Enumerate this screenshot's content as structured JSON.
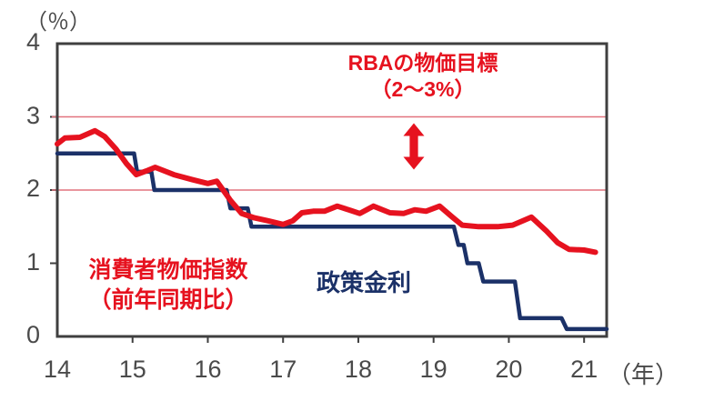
{
  "chart_data": {
    "type": "line",
    "title": "",
    "y_axis_unit_label": "（％）",
    "x_axis_unit_label": "（年）",
    "x_range": [
      14,
      21.3
    ],
    "y_range": [
      0,
      4
    ],
    "x_ticks": [
      14,
      15,
      16,
      17,
      18,
      19,
      20,
      21
    ],
    "x_tick_labels": [
      "14",
      "15",
      "16",
      "17",
      "18",
      "19",
      "20",
      "21"
    ],
    "y_ticks": [
      4,
      3,
      2,
      1,
      0
    ],
    "y_tick_labels": [
      "4",
      "3",
      "2",
      "1",
      "0"
    ],
    "grid": "off",
    "legend_position": "none",
    "axis_color": "#3f3f3f",
    "tick_label_color": "#4a4a4a",
    "target_band": {
      "low": 2,
      "high": 3,
      "line_color": "#e2737f"
    },
    "series": [
      {
        "name": "政策金利",
        "color": "#1b3168",
        "width": 4.5,
        "style": "step",
        "points": [
          [
            14.0,
            2.5
          ],
          [
            15.02,
            2.5
          ],
          [
            15.06,
            2.25
          ],
          [
            15.25,
            2.25
          ],
          [
            15.29,
            2.0
          ],
          [
            16.25,
            2.0
          ],
          [
            16.3,
            1.75
          ],
          [
            16.53,
            1.75
          ],
          [
            16.58,
            1.5
          ],
          [
            19.27,
            1.5
          ],
          [
            19.33,
            1.25
          ],
          [
            19.4,
            1.25
          ],
          [
            19.45,
            1.0
          ],
          [
            19.6,
            1.0
          ],
          [
            19.66,
            0.75
          ],
          [
            20.08,
            0.75
          ],
          [
            20.15,
            0.25
          ],
          [
            20.7,
            0.25
          ],
          [
            20.77,
            0.1
          ],
          [
            21.3,
            0.1
          ]
        ]
      },
      {
        "name": "消費者物価指数（前年同期比）",
        "color": "#e6121f",
        "width": 6,
        "style": "line",
        "points": [
          [
            14.0,
            2.63
          ],
          [
            14.1,
            2.71
          ],
          [
            14.3,
            2.72
          ],
          [
            14.5,
            2.81
          ],
          [
            14.63,
            2.73
          ],
          [
            14.78,
            2.56
          ],
          [
            14.92,
            2.36
          ],
          [
            15.05,
            2.21
          ],
          [
            15.18,
            2.26
          ],
          [
            15.3,
            2.31
          ],
          [
            15.55,
            2.21
          ],
          [
            15.8,
            2.14
          ],
          [
            16.0,
            2.09
          ],
          [
            16.12,
            2.12
          ],
          [
            16.3,
            1.86
          ],
          [
            16.45,
            1.68
          ],
          [
            16.62,
            1.62
          ],
          [
            16.8,
            1.58
          ],
          [
            17.0,
            1.53
          ],
          [
            17.13,
            1.58
          ],
          [
            17.25,
            1.69
          ],
          [
            17.4,
            1.71
          ],
          [
            17.55,
            1.71
          ],
          [
            17.72,
            1.78
          ],
          [
            17.9,
            1.72
          ],
          [
            18.02,
            1.68
          ],
          [
            18.2,
            1.78
          ],
          [
            18.42,
            1.69
          ],
          [
            18.6,
            1.68
          ],
          [
            18.75,
            1.73
          ],
          [
            18.9,
            1.71
          ],
          [
            19.08,
            1.78
          ],
          [
            19.25,
            1.63
          ],
          [
            19.38,
            1.52
          ],
          [
            19.6,
            1.5
          ],
          [
            19.85,
            1.5
          ],
          [
            20.05,
            1.52
          ],
          [
            20.3,
            1.63
          ],
          [
            20.5,
            1.44
          ],
          [
            20.65,
            1.28
          ],
          [
            20.8,
            1.19
          ],
          [
            21.0,
            1.18
          ],
          [
            21.15,
            1.15
          ]
        ]
      }
    ],
    "annotations": {
      "rba_target": {
        "line1": "RBAの物価目標",
        "line2": "（2〜3%）",
        "color": "#e6121f"
      },
      "cpi_label": {
        "line1": "消費者物価指数",
        "line2": "（前年同期比）",
        "color": "#e6121f"
      },
      "rate_label": {
        "text": "政策金利",
        "color": "#1b3168"
      },
      "arrow": {
        "type": "double-headed-vertical",
        "color": "#e6121f"
      }
    }
  }
}
